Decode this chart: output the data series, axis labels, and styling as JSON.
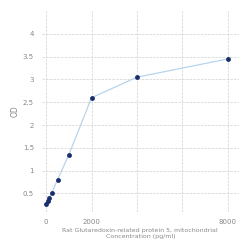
{
  "x": [
    0,
    62.5,
    125,
    250,
    500,
    1000,
    2000,
    4000,
    8000
  ],
  "y": [
    0.27,
    0.33,
    0.4,
    0.52,
    0.8,
    1.35,
    2.6,
    3.05,
    3.45
  ],
  "line_color": "#b8d4ec",
  "marker_color": "#1a2e6e",
  "marker_size": 3.5,
  "xlabel_line1": "Rat Glutaredoxin-related protein 5, mitochondrial",
  "xlabel_line2": "Concentration (pg/ml)",
  "ylabel": "OD",
  "xlim": [
    -200,
    8500
  ],
  "ylim": [
    0.1,
    4.5
  ],
  "yticks": [
    0.5,
    1.0,
    1.5,
    2.0,
    2.5,
    3.0,
    3.5,
    4.0
  ],
  "ytick_labels": [
    "0.5",
    "1",
    "1.5",
    "2",
    "2.5",
    "3",
    "3.5",
    "4"
  ],
  "xticks": [
    0,
    2000,
    4000,
    6000,
    8000
  ],
  "xtick_labels": [
    "0",
    "2000",
    "",
    "",
    "8000"
  ],
  "grid_color": "#d0d0d0",
  "plot_bg_color": "#ffffff",
  "fig_bg_color": "#ffffff",
  "spine_color": "#aaaaaa",
  "tick_color": "#888888",
  "label_fontsize": 4.5,
  "tick_fontsize": 5.0,
  "ylabel_fontsize": 5.5
}
